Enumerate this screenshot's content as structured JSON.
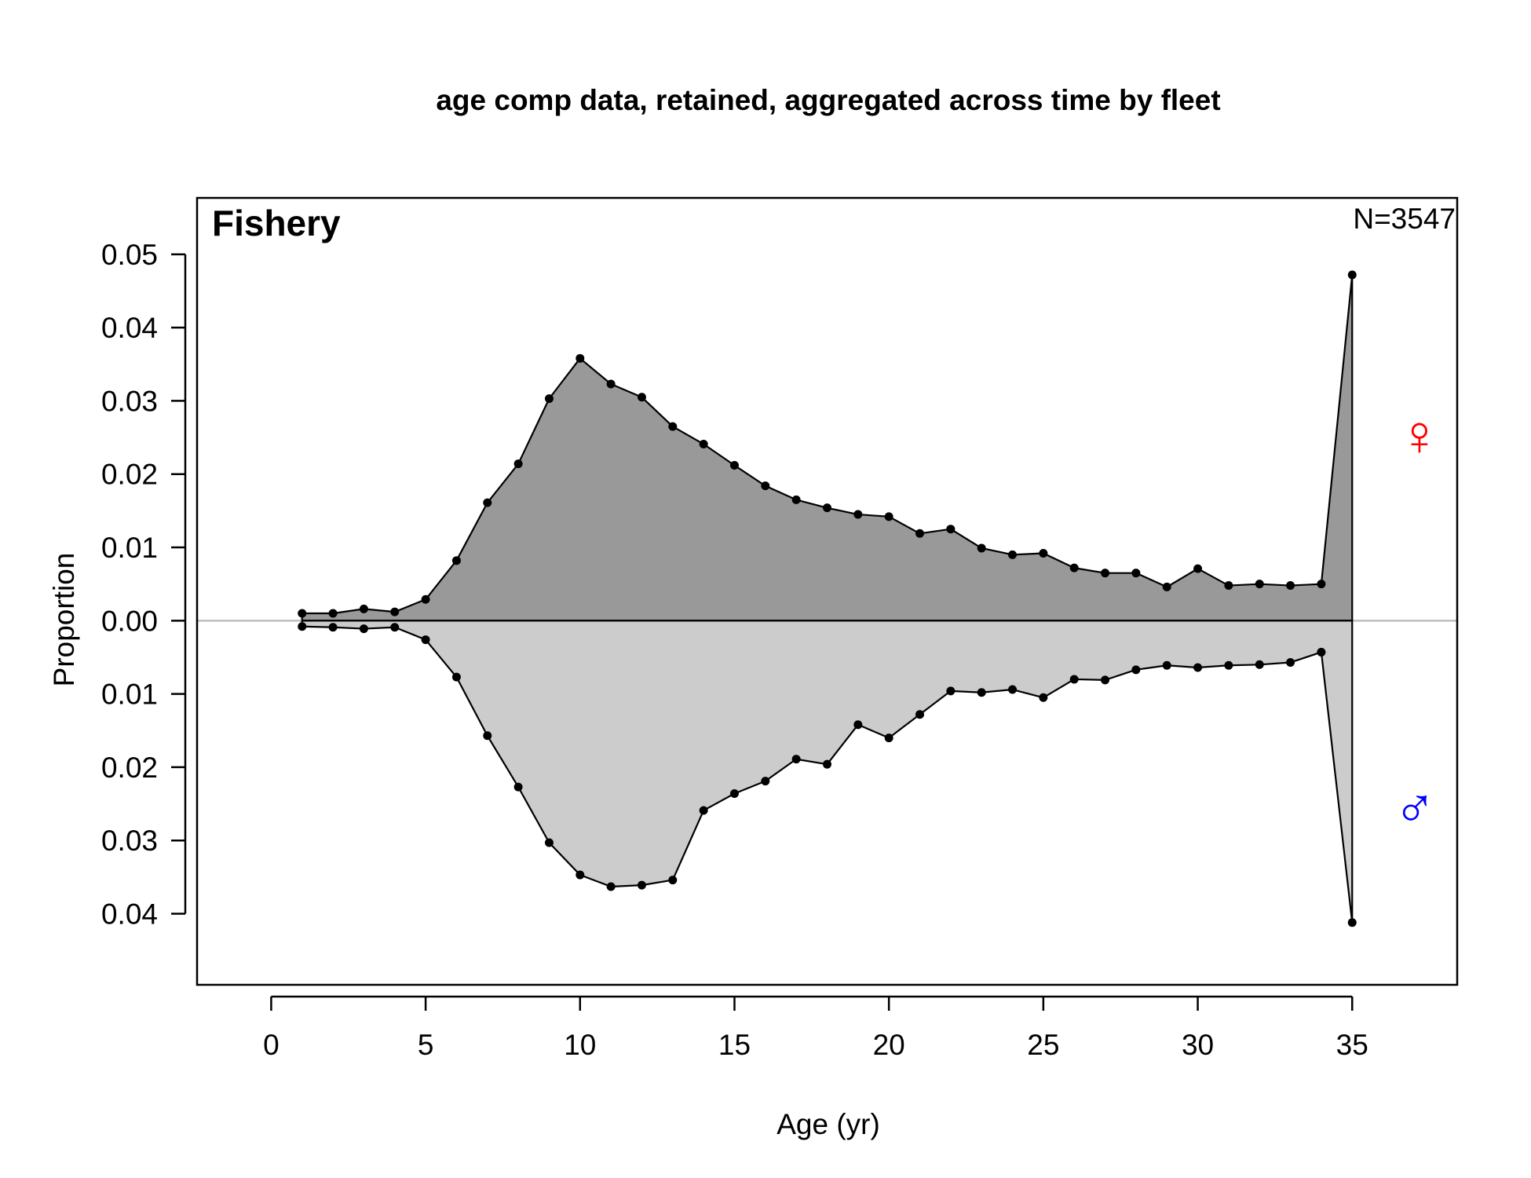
{
  "chart_data": {
    "type": "area",
    "title": "age comp data, retained, aggregated across time by fleet",
    "xlabel": "Age (yr)",
    "ylabel": "Proportion",
    "panel_label": "Fishery",
    "n_label": "N=3547",
    "xlim": [
      -2.4,
      38.4
    ],
    "ylim": [
      -0.0497,
      0.0577
    ],
    "x_ticks": [
      0,
      5,
      10,
      15,
      20,
      25,
      30,
      35
    ],
    "x_tick_labels": [
      "0",
      "5",
      "10",
      "15",
      "20",
      "25",
      "30",
      "35"
    ],
    "y_ticks": [
      0.05,
      0.04,
      0.03,
      0.02,
      0.01,
      0.0,
      -0.01,
      -0.02,
      -0.03,
      -0.04
    ],
    "y_tick_labels": [
      "0.05",
      "0.04",
      "0.03",
      "0.02",
      "0.01",
      "0.00",
      "0.01",
      "0.02",
      "0.03",
      "0.04"
    ],
    "x": [
      1,
      2,
      3,
      4,
      5,
      6,
      7,
      8,
      9,
      10,
      11,
      12,
      13,
      14,
      15,
      16,
      17,
      18,
      19,
      20,
      21,
      22,
      23,
      24,
      25,
      26,
      27,
      28,
      29,
      30,
      31,
      32,
      33,
      34,
      35
    ],
    "series": [
      {
        "name": "Female",
        "symbol": "♀",
        "direction": "up",
        "fill_color": "#999999",
        "symbol_color": "#ff0000",
        "values": [
          0.001,
          0.001,
          0.0016,
          0.0012,
          0.0029,
          0.0082,
          0.0161,
          0.0214,
          0.0303,
          0.0358,
          0.0323,
          0.0305,
          0.0265,
          0.0241,
          0.0212,
          0.0184,
          0.0165,
          0.0154,
          0.0145,
          0.0142,
          0.0119,
          0.0125,
          0.0099,
          0.009,
          0.0092,
          0.0072,
          0.0065,
          0.0065,
          0.0046,
          0.0071,
          0.0048,
          0.005,
          0.0048,
          0.005,
          0.0472
        ]
      },
      {
        "name": "Male",
        "symbol": "♂",
        "direction": "down",
        "fill_color": "#cccccc",
        "symbol_color": "#0000ff",
        "values": [
          0.0008,
          0.0009,
          0.0011,
          0.0009,
          0.0026,
          0.0077,
          0.0157,
          0.0227,
          0.0303,
          0.0347,
          0.0363,
          0.0361,
          0.0354,
          0.0259,
          0.0236,
          0.0219,
          0.0189,
          0.0196,
          0.0142,
          0.016,
          0.0128,
          0.0096,
          0.0098,
          0.0094,
          0.0105,
          0.008,
          0.0081,
          0.0067,
          0.0061,
          0.0064,
          0.0061,
          0.006,
          0.0057,
          0.0043,
          0.0412
        ]
      }
    ],
    "grid": false,
    "zero_line": true
  }
}
